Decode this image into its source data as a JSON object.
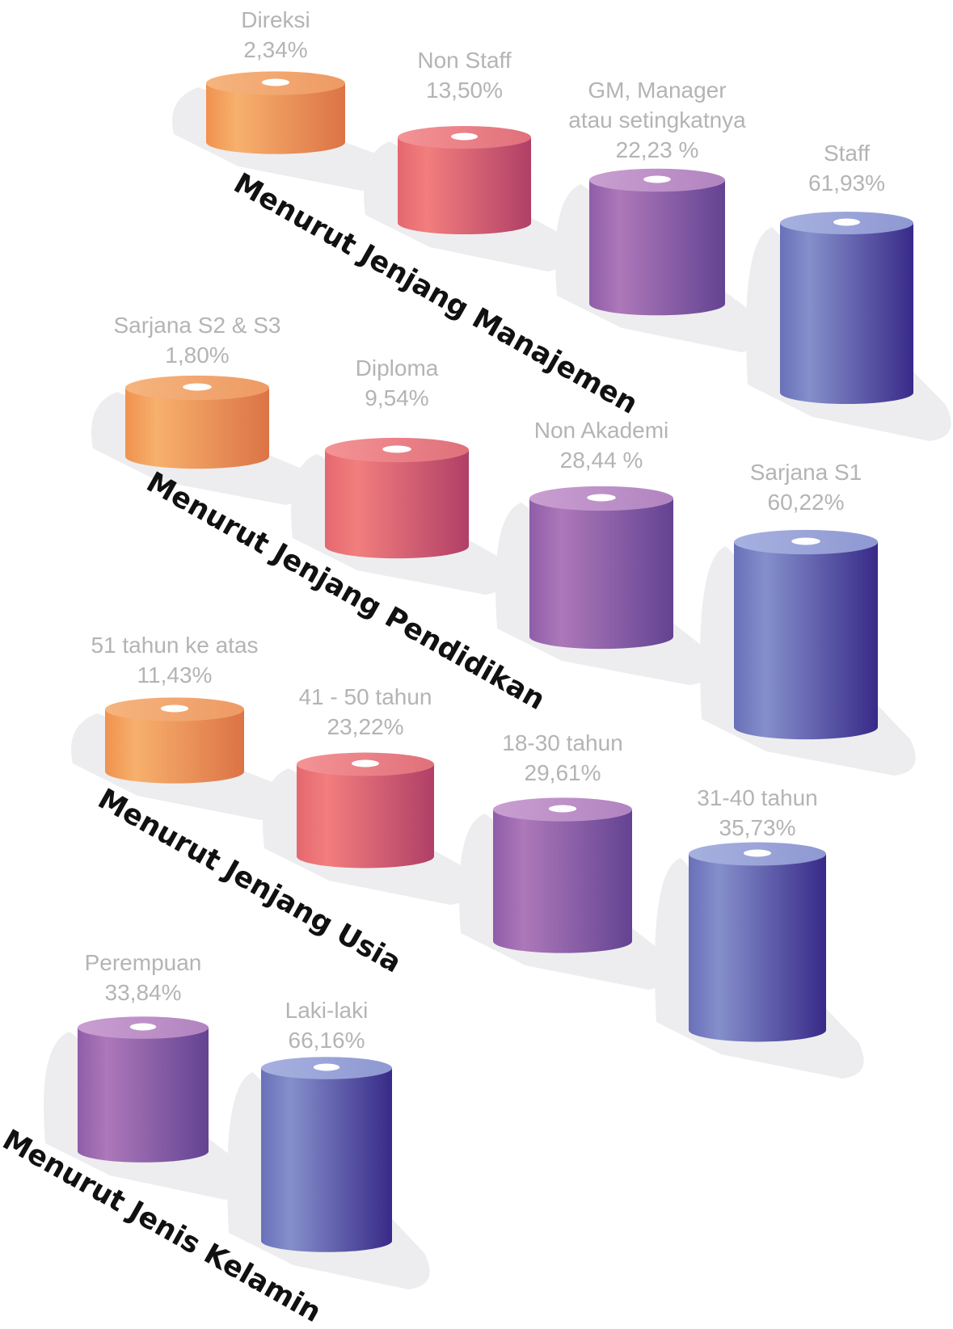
{
  "chart_data": [
    {
      "type": "bar",
      "title": "Menurut Jenjang Manajemen",
      "categories": [
        [
          "Direksi"
        ],
        [
          "Non Staff"
        ],
        [
          "GM, Manager",
          "atau setingkatnya"
        ],
        [
          "Staff"
        ]
      ],
      "value_labels": [
        "2,34%",
        "13,50%",
        "22,23 %",
        "61,93%"
      ],
      "values": [
        2.34,
        13.5,
        22.23,
        61.93
      ]
    },
    {
      "type": "bar",
      "title": "Menurut Jenjang Pendidikan",
      "categories": [
        [
          "Sarjana S2 & S3"
        ],
        [
          "Diploma"
        ],
        [
          "Non Akademi"
        ],
        [
          "Sarjana S1"
        ]
      ],
      "value_labels": [
        "1,80%",
        "9,54%",
        "28,44 %",
        "60,22%"
      ],
      "values": [
        1.8,
        9.54,
        28.44,
        60.22
      ]
    },
    {
      "type": "bar",
      "title": "Menurut Jenjang Usia",
      "categories": [
        [
          "51 tahun ke atas"
        ],
        [
          "41 - 50 tahun"
        ],
        [
          "18-30 tahun"
        ],
        [
          "31-40 tahun"
        ]
      ],
      "value_labels": [
        "11,43%",
        "23,22%",
        "29,61%",
        "35,73%"
      ],
      "values": [
        11.43,
        23.22,
        29.61,
        35.73
      ]
    },
    {
      "type": "bar",
      "title": "Menurut Jenis Kelamin",
      "categories": [
        [
          "Perempuan"
        ],
        [
          "Laki-laki"
        ]
      ],
      "value_labels": [
        "33,84%",
        "66,16%"
      ],
      "values": [
        33.84,
        66.16
      ]
    }
  ],
  "colors": {
    "orange": [
      "#f7a865",
      "#e2794a"
    ],
    "red": [
      "#f07b7c",
      "#b64368"
    ],
    "purple": [
      "#ab74b7",
      "#6a4795"
    ],
    "blue": [
      "#8088c8",
      "#3d2e8c"
    ],
    "shadow": "#ededef",
    "label": "#b4b4b4",
    "title": "#111111"
  }
}
